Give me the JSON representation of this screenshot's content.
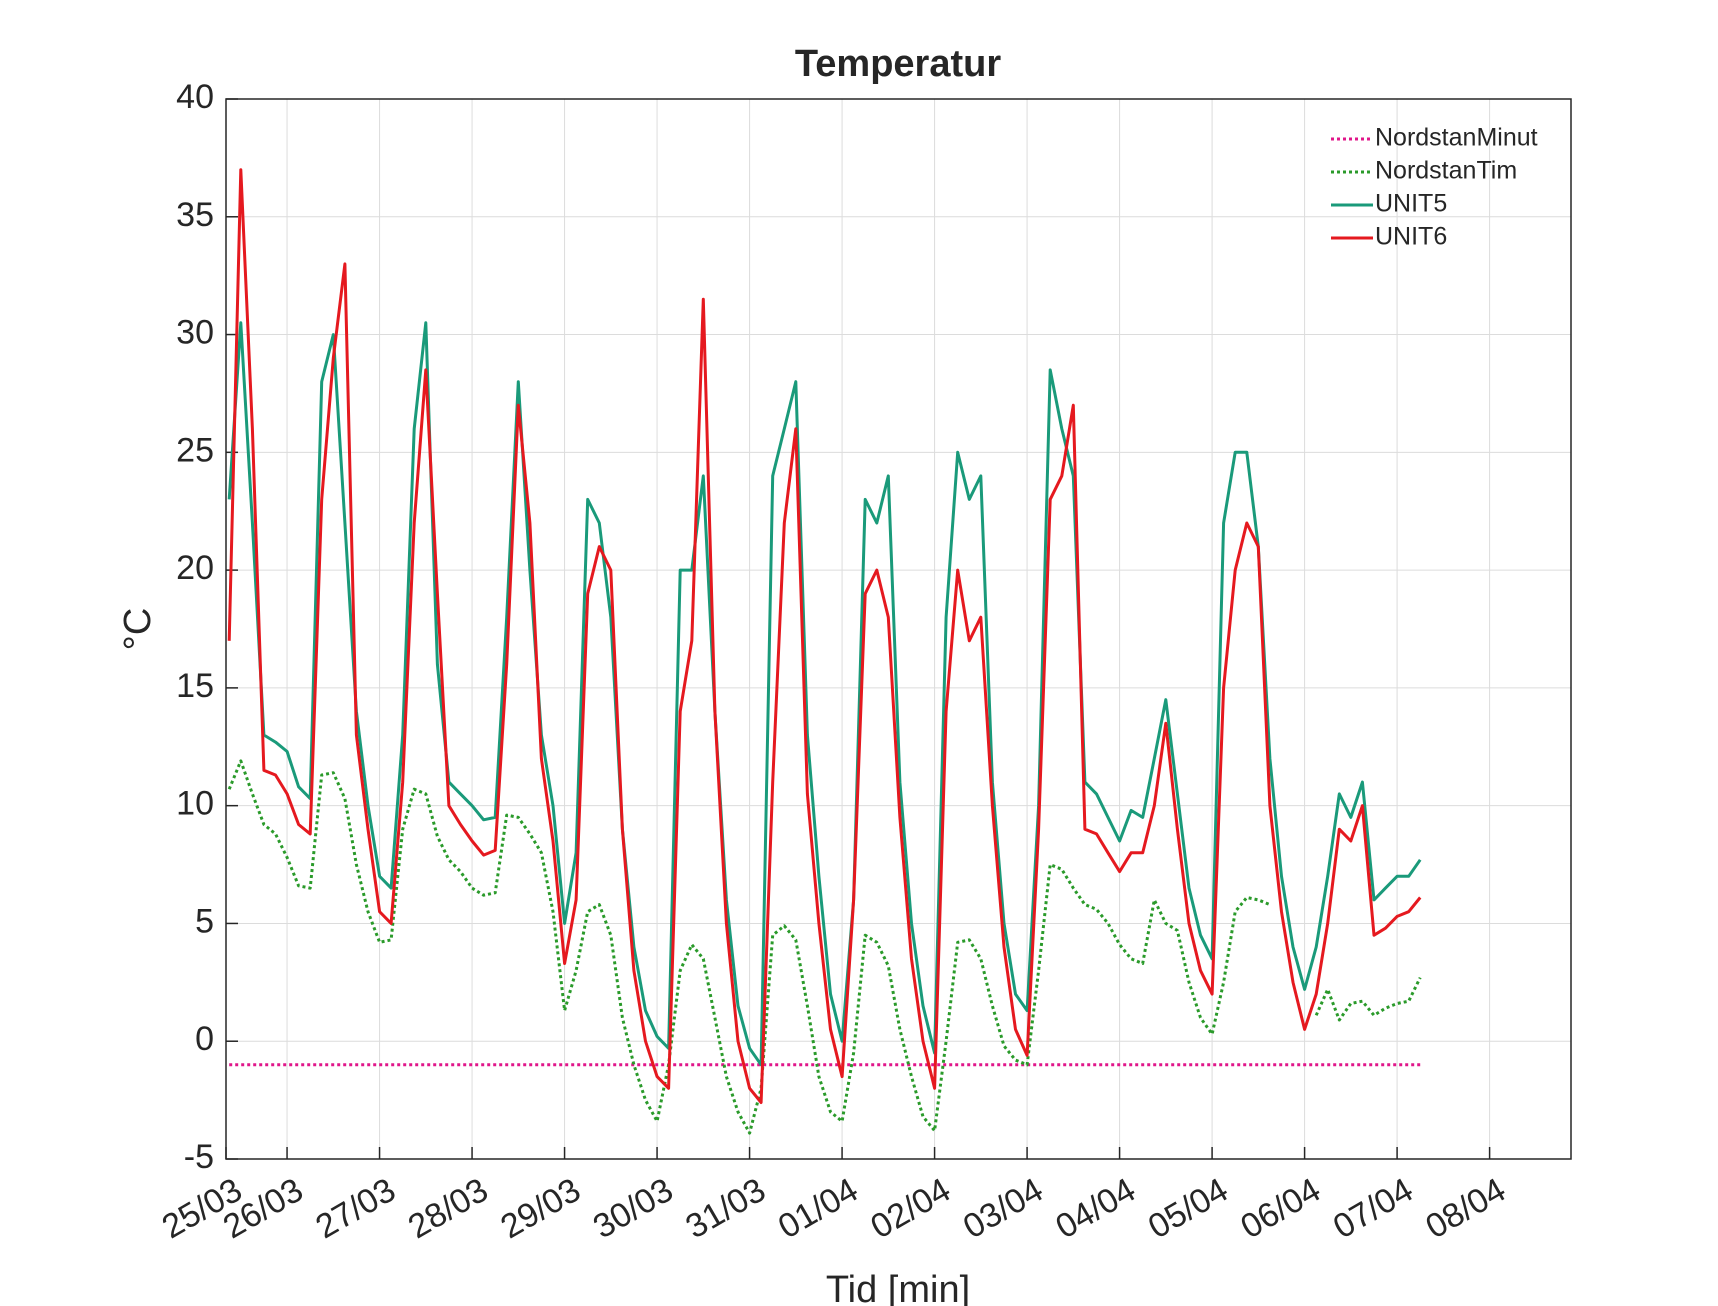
{
  "chart_data": {
    "type": "line",
    "title": "Temperatur",
    "xlabel": "Tid [min]",
    "ylabel": "°C",
    "x": [
      0.375,
      0.5,
      0.625,
      0.75,
      0.875,
      1.0,
      1.125,
      1.25,
      1.375,
      1.5,
      1.625,
      1.75,
      1.875,
      2.0,
      2.125,
      2.25,
      2.375,
      2.5,
      2.625,
      2.75,
      2.875,
      3.0,
      3.125,
      3.25,
      3.375,
      3.5,
      3.625,
      3.75,
      3.875,
      4.0,
      4.125,
      4.25,
      4.375,
      4.5,
      4.625,
      4.75,
      4.875,
      5.0,
      5.125,
      5.25,
      5.375,
      5.5,
      5.625,
      5.75,
      5.875,
      6.0,
      6.125,
      6.25,
      6.375,
      6.5,
      6.625,
      6.75,
      6.875,
      7.0,
      7.125,
      7.25,
      7.375,
      7.5,
      7.625,
      7.75,
      7.875,
      8.0,
      8.125,
      8.25,
      8.375,
      8.5,
      8.625,
      8.75,
      8.875,
      9.0,
      9.125,
      9.25,
      9.375,
      9.5,
      9.625,
      9.75,
      9.875,
      10.0,
      10.125,
      10.25,
      10.375,
      10.5,
      10.625,
      10.75,
      10.875,
      11.0,
      11.125,
      11.25,
      11.375,
      11.5,
      11.625,
      11.75,
      11.875,
      12.0,
      12.125,
      12.25,
      12.375,
      12.5,
      12.625,
      12.75,
      12.875,
      13.0,
      13.125,
      13.25
    ],
    "series": [
      {
        "name": "NordstanMinut",
        "color": "#e0168a",
        "linestyle": "dotted",
        "values": [
          -1,
          -1,
          -1,
          -1,
          -1,
          -1,
          -1,
          -1,
          -1,
          -1,
          -1,
          -1,
          -1,
          -1,
          -1,
          -1,
          -1,
          -1,
          -1,
          -1,
          -1,
          -1,
          -1,
          -1,
          -1,
          -1,
          -1,
          -1,
          -1,
          -1,
          -1,
          -1,
          -1,
          -1,
          -1,
          -1,
          -1,
          -1,
          -1,
          -1,
          -1,
          -1,
          -1,
          -1,
          -1,
          -1,
          -1,
          -1,
          -1,
          -1,
          -1,
          -1,
          -1,
          -1,
          -1,
          -1,
          -1,
          -1,
          -1,
          -1,
          -1,
          -1,
          -1,
          -1,
          -1,
          -1,
          -1,
          -1,
          -1,
          -1,
          -1,
          -1,
          -1,
          -1,
          -1,
          -1,
          -1,
          -1,
          -1,
          -1,
          -1,
          -1,
          -1,
          -1,
          -1,
          -1,
          -1,
          -1,
          -1,
          -1,
          -1,
          -1,
          -1,
          -1,
          -1,
          -1,
          -1,
          -1,
          -1,
          -1,
          -1,
          -1,
          -1,
          -1
        ]
      },
      {
        "name": "NordstanTim",
        "color": "#2a9a2a",
        "linestyle": "dotted",
        "values": [
          10.7,
          11.9,
          10.5,
          9.2,
          8.8,
          7.8,
          6.6,
          6.5,
          11.3,
          11.4,
          10.3,
          7.5,
          5.5,
          4.2,
          4.3,
          9,
          10.7,
          10.5,
          8.7,
          7.7,
          7.2,
          6.5,
          6.2,
          6.3,
          9.6,
          9.5,
          8.8,
          8,
          5.5,
          1.3,
          3,
          5.5,
          5.8,
          4.5,
          1,
          -1,
          -2.5,
          -3.4,
          -1,
          3,
          4.1,
          3.5,
          1,
          -1.5,
          -3,
          -3.9,
          -2,
          4.5,
          4.9,
          4.3,
          1.5,
          -1.5,
          -3,
          -3.4,
          -0.5,
          4.5,
          4.2,
          3.2,
          0.5,
          -1.5,
          -3.2,
          -3.8,
          0,
          4.2,
          4.3,
          3.5,
          1.5,
          -0.2,
          -0.8,
          -1,
          3,
          7.5,
          7.3,
          6.5,
          5.8,
          5.6,
          5,
          4.1,
          3.5,
          3.3,
          6,
          5,
          4.7,
          2.5,
          1,
          0.3,
          2.5,
          5.5,
          6.1,
          6,
          5.8,
          null,
          null,
          null,
          1.1,
          2.2,
          0.9,
          1.6,
          1.7,
          1.1,
          1.4,
          1.6,
          1.7,
          2.7
        ]
      },
      {
        "name": "UNIT5",
        "color": "#1a9a7a",
        "linestyle": "solid",
        "values": [
          23,
          30.5,
          22,
          13,
          12.7,
          12.3,
          10.8,
          10.3,
          28,
          30,
          22,
          14,
          10,
          7,
          6.5,
          13,
          26,
          30.5,
          16,
          11,
          10.5,
          10,
          9.4,
          9.5,
          18,
          28,
          20,
          13,
          10,
          5,
          8,
          23,
          22,
          18,
          9,
          4,
          1.3,
          0.2,
          -0.3,
          20,
          20,
          24,
          14,
          6,
          1.5,
          -0.3,
          -1,
          24,
          26,
          28,
          13,
          7,
          2,
          0,
          6,
          23,
          22,
          24,
          11,
          5,
          1.5,
          -0.5,
          18,
          25,
          23,
          24,
          11,
          5,
          2,
          1.3,
          10,
          28.5,
          26,
          24,
          11,
          10.5,
          9.5,
          8.5,
          9.8,
          9.5,
          12,
          14.5,
          10.5,
          6.5,
          4.5,
          3.5,
          22,
          25,
          25,
          21,
          12,
          7,
          4,
          2.2,
          4,
          7,
          10.5,
          9.5,
          11,
          6,
          6.5,
          7,
          7,
          7.7
        ]
      },
      {
        "name": "UNIT6",
        "color": "#e5191f",
        "linestyle": "solid",
        "values": [
          17,
          37,
          26,
          11.5,
          11.3,
          10.5,
          9.2,
          8.8,
          23,
          29,
          33,
          13,
          9,
          5.5,
          5,
          11,
          22,
          28.5,
          19,
          10,
          9.2,
          8.5,
          7.9,
          8.1,
          16,
          27,
          22,
          12,
          8.5,
          3.3,
          6,
          19,
          21,
          20,
          9,
          3,
          0,
          -1.5,
          -2,
          14,
          17,
          31.5,
          14,
          5,
          0,
          -2,
          -2.6,
          11,
          22,
          26,
          10.5,
          5,
          0.5,
          -1.5,
          6,
          19,
          20,
          18,
          9.5,
          3.5,
          0,
          -2,
          14,
          20,
          17,
          18,
          10,
          4,
          0.5,
          -0.6,
          9,
          23,
          24,
          27,
          9,
          8.8,
          8,
          7.2,
          8,
          8,
          10,
          13.5,
          9,
          5,
          3,
          2,
          15,
          20,
          22,
          21,
          10,
          5.5,
          2.5,
          0.5,
          2,
          5,
          9,
          8.5,
          10,
          4.5,
          4.8,
          5.3,
          5.5,
          6.1
        ]
      }
    ],
    "xlim": [
      0.34,
      14.88
    ],
    "xticks": [
      {
        "value": 0.34,
        "label": "25/03"
      },
      {
        "value": 1,
        "label": "26/03"
      },
      {
        "value": 2,
        "label": "27/03"
      },
      {
        "value": 3,
        "label": "28/03"
      },
      {
        "value": 4,
        "label": "29/03"
      },
      {
        "value": 5,
        "label": "30/03"
      },
      {
        "value": 6,
        "label": "31/03"
      },
      {
        "value": 7,
        "label": "01/04"
      },
      {
        "value": 8,
        "label": "02/04"
      },
      {
        "value": 9,
        "label": "03/04"
      },
      {
        "value": 10,
        "label": "04/04"
      },
      {
        "value": 11,
        "label": "05/04"
      },
      {
        "value": 12,
        "label": "06/04"
      },
      {
        "value": 13,
        "label": "07/04"
      },
      {
        "value": 14,
        "label": "08/04"
      }
    ],
    "ylim": [
      -5,
      40
    ],
    "yticks": [
      -5,
      0,
      5,
      10,
      15,
      20,
      25,
      30,
      35,
      40
    ],
    "grid": true,
    "legend": "upper right"
  }
}
